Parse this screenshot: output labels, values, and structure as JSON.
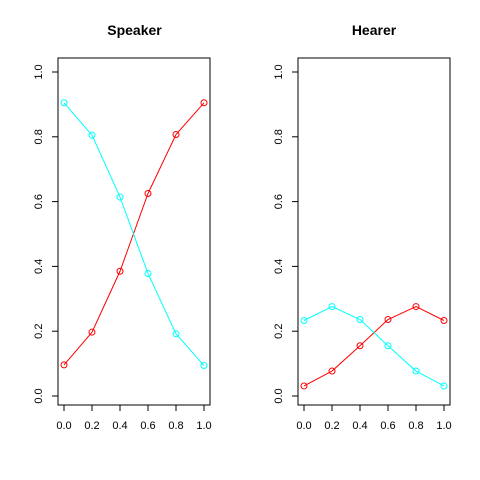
{
  "chart_data": [
    {
      "type": "line",
      "title": "Speaker",
      "xlabel": "",
      "ylabel": "",
      "xlim": [
        0,
        1
      ],
      "ylim": [
        0,
        1
      ],
      "xticks": [
        "0.0",
        "0.2",
        "0.4",
        "0.6",
        "0.8",
        "1.0"
      ],
      "yticks": [
        "0.0",
        "0.2",
        "0.4",
        "0.6",
        "0.8",
        "1.0"
      ],
      "grid": false,
      "x": [
        0.0,
        0.2,
        0.4,
        0.6,
        0.8,
        1.0
      ],
      "series": [
        {
          "color": "#ff0000",
          "marker": "circle-open",
          "values": [
            0.096,
            0.197,
            0.385,
            0.625,
            0.807,
            0.905
          ]
        },
        {
          "color": "#00ffff",
          "marker": "circle-open",
          "values": [
            0.905,
            0.805,
            0.614,
            0.378,
            0.192,
            0.094
          ]
        }
      ]
    },
    {
      "type": "line",
      "title": "Hearer",
      "xlabel": "",
      "ylabel": "",
      "xlim": [
        0,
        1
      ],
      "ylim": [
        0,
        1
      ],
      "xticks": [
        "0.0",
        "0.2",
        "0.4",
        "0.6",
        "0.8",
        "1.0"
      ],
      "yticks": [
        "0.0",
        "0.2",
        "0.4",
        "0.6",
        "0.8",
        "1.0"
      ],
      "grid": false,
      "x": [
        0.0,
        0.2,
        0.4,
        0.6,
        0.8,
        1.0
      ],
      "series": [
        {
          "color": "#ff0000",
          "marker": "circle-open",
          "values": [
            0.031,
            0.077,
            0.155,
            0.236,
            0.276,
            0.233
          ]
        },
        {
          "color": "#00ffff",
          "marker": "circle-open",
          "values": [
            0.233,
            0.276,
            0.236,
            0.155,
            0.077,
            0.031
          ]
        }
      ]
    }
  ]
}
